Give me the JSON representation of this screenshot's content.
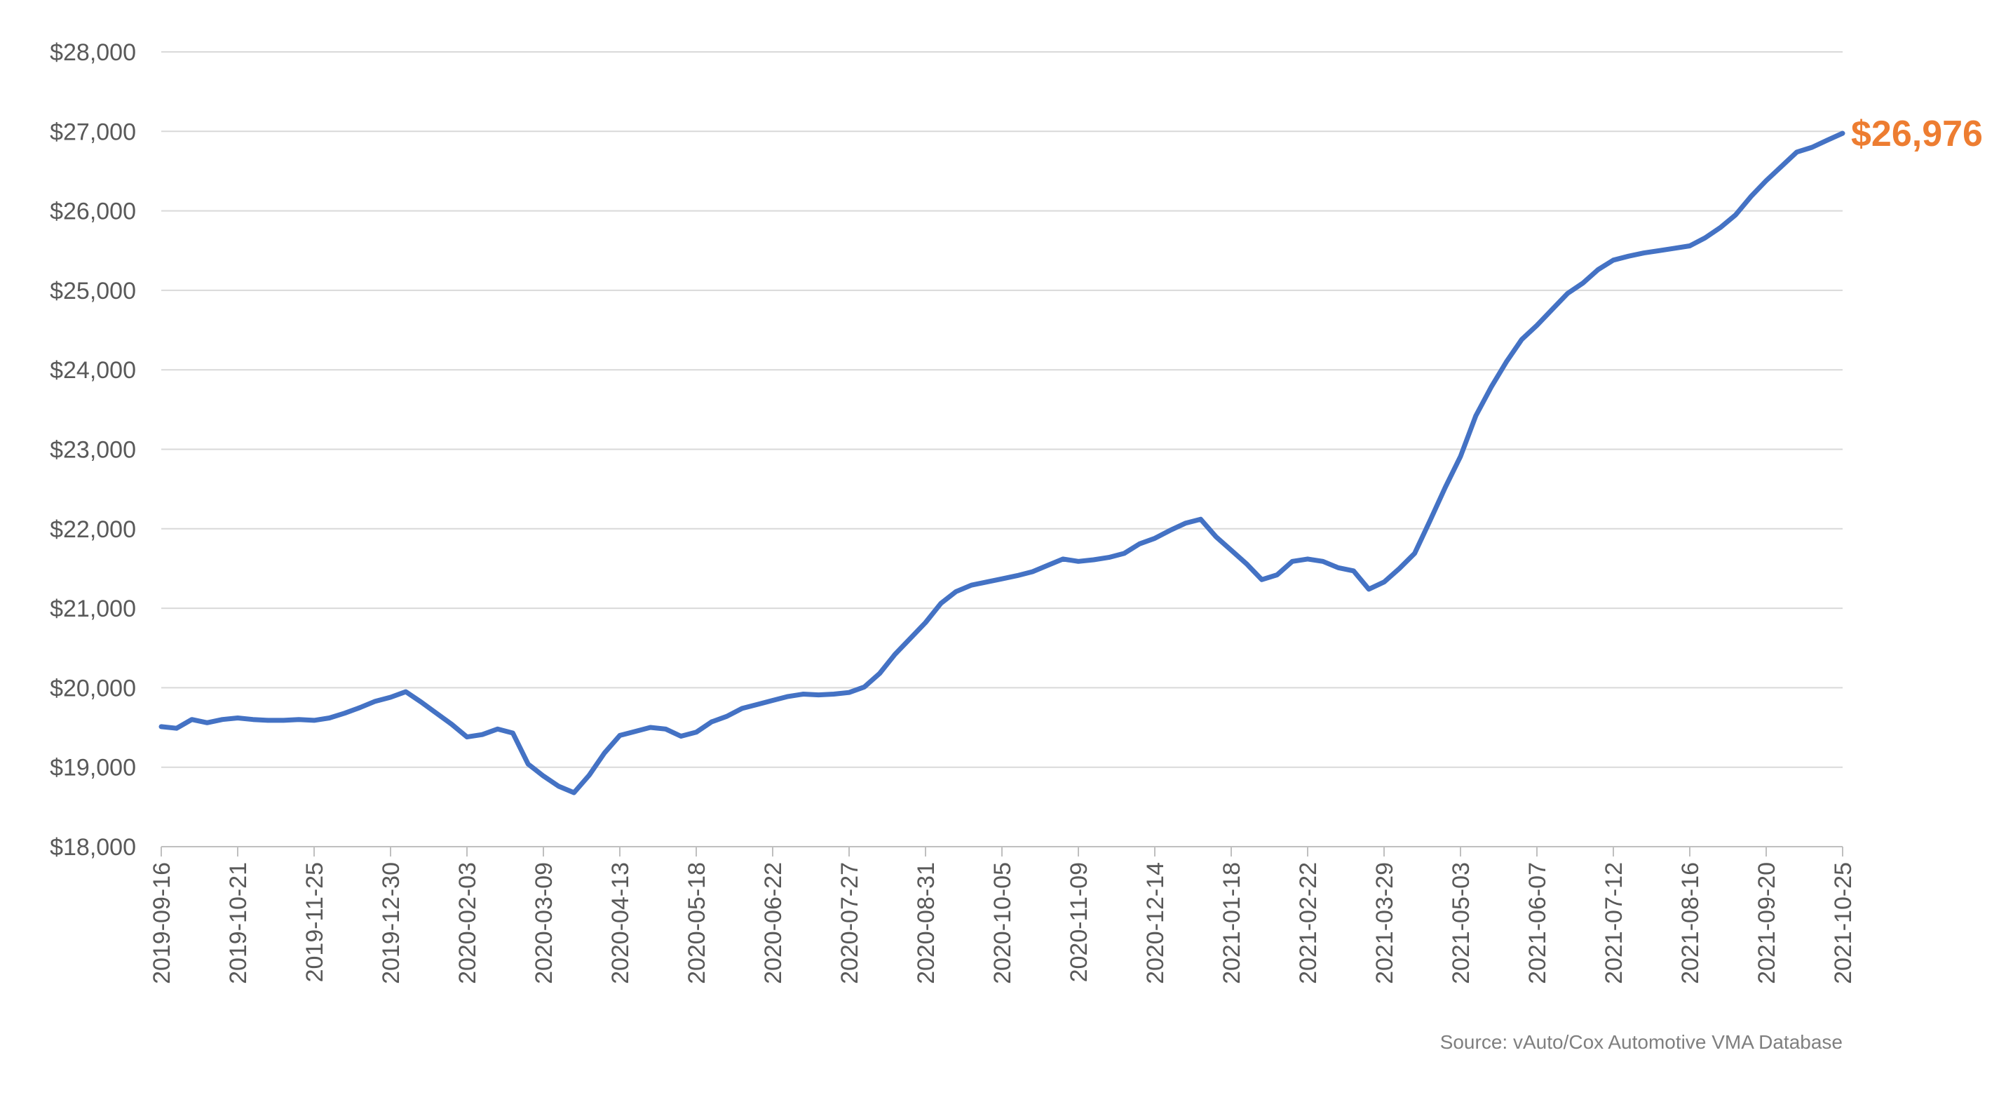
{
  "chart_data": {
    "type": "line",
    "title": "",
    "xlabel": "",
    "ylabel": "",
    "ylim": [
      18000,
      28000
    ],
    "y_ticks": [
      18000,
      19000,
      20000,
      21000,
      22000,
      23000,
      24000,
      25000,
      26000,
      27000,
      28000
    ],
    "y_tick_labels": [
      "$18,000",
      "$19,000",
      "$20,000",
      "$21,000",
      "$22,000",
      "$23,000",
      "$24,000",
      "$25,000",
      "$26,000",
      "$27,000",
      "$28,000"
    ],
    "x_tick_labels": [
      "2019-09-16",
      "2019-10-21",
      "2019-11-25",
      "2019-12-30",
      "2020-02-03",
      "2020-03-09",
      "2020-04-13",
      "2020-05-18",
      "2020-06-22",
      "2020-07-27",
      "2020-08-31",
      "2020-10-05",
      "2020-11-09",
      "2020-12-14",
      "2021-01-18",
      "2021-02-22",
      "2021-03-29",
      "2021-05-03",
      "2021-06-07",
      "2021-07-12",
      "2021-08-16",
      "2021-09-20",
      "2021-10-25"
    ],
    "grid": true,
    "legend": "none",
    "series_color": "#4472c4",
    "end_label_color": "#ed7d31",
    "end_value_label": "$26,976",
    "source": "Source: vAuto/Cox Automotive VMA Database",
    "x": [
      "2019-09-16",
      "2019-09-23",
      "2019-09-30",
      "2019-10-07",
      "2019-10-14",
      "2019-10-21",
      "2019-10-28",
      "2019-11-04",
      "2019-11-11",
      "2019-11-18",
      "2019-11-25",
      "2019-12-02",
      "2019-12-09",
      "2019-12-16",
      "2019-12-23",
      "2019-12-30",
      "2020-01-06",
      "2020-01-13",
      "2020-01-20",
      "2020-01-27",
      "2020-02-03",
      "2020-02-10",
      "2020-02-17",
      "2020-02-24",
      "2020-03-02",
      "2020-03-09",
      "2020-03-16",
      "2020-03-23",
      "2020-03-30",
      "2020-04-06",
      "2020-04-13",
      "2020-04-20",
      "2020-04-27",
      "2020-05-04",
      "2020-05-11",
      "2020-05-18",
      "2020-05-25",
      "2020-06-01",
      "2020-06-08",
      "2020-06-15",
      "2020-06-22",
      "2020-06-29",
      "2020-07-06",
      "2020-07-13",
      "2020-07-20",
      "2020-07-27",
      "2020-08-03",
      "2020-08-10",
      "2020-08-17",
      "2020-08-24",
      "2020-08-31",
      "2020-09-07",
      "2020-09-14",
      "2020-09-21",
      "2020-09-28",
      "2020-10-05",
      "2020-10-12",
      "2020-10-19",
      "2020-10-26",
      "2020-11-02",
      "2020-11-09",
      "2020-11-16",
      "2020-11-23",
      "2020-11-30",
      "2020-12-07",
      "2020-12-14",
      "2020-12-21",
      "2020-12-28",
      "2021-01-04",
      "2021-01-11",
      "2021-01-18",
      "2021-01-25",
      "2021-02-01",
      "2021-02-08",
      "2021-02-15",
      "2021-02-22",
      "2021-03-01",
      "2021-03-08",
      "2021-03-15",
      "2021-03-22",
      "2021-03-29",
      "2021-04-05",
      "2021-04-12",
      "2021-04-19",
      "2021-04-26",
      "2021-05-03",
      "2021-05-10",
      "2021-05-17",
      "2021-05-24",
      "2021-05-31",
      "2021-06-07",
      "2021-06-14",
      "2021-06-21",
      "2021-06-28",
      "2021-07-05",
      "2021-07-12",
      "2021-07-19",
      "2021-07-26",
      "2021-08-02",
      "2021-08-09",
      "2021-08-16",
      "2021-08-23",
      "2021-08-30",
      "2021-09-06",
      "2021-09-13",
      "2021-09-20",
      "2021-09-27",
      "2021-10-04",
      "2021-10-11",
      "2021-10-18",
      "2021-10-25"
    ],
    "series": [
      {
        "values": [
          19510,
          19490,
          19600,
          19560,
          19600,
          19620,
          19600,
          19590,
          19590,
          19600,
          19590,
          19620,
          19680,
          19750,
          19830,
          19880,
          19950,
          19820,
          19680,
          19540,
          19380,
          19410,
          19480,
          19430,
          19040,
          18890,
          18760,
          18680,
          18900,
          19180,
          19400,
          19450,
          19500,
          19480,
          19390,
          19440,
          19570,
          19640,
          19740,
          19790,
          19840,
          19890,
          19920,
          19910,
          19920,
          19940,
          20010,
          20180,
          20420,
          20620,
          20820,
          21060,
          21210,
          21290,
          21330,
          21370,
          21410,
          21460,
          21540,
          21620,
          21590,
          21610,
          21640,
          21690,
          21810,
          21880,
          21980,
          22070,
          22120,
          21900,
          21730,
          21560,
          21360,
          21420,
          21590,
          21620,
          21590,
          21510,
          21470,
          21240,
          21330,
          21500,
          21690,
          22100,
          22520,
          22910,
          23420,
          23780,
          24100,
          24380,
          24560,
          24760,
          24960,
          25090,
          25260,
          25380,
          25430,
          25470,
          25500,
          25530,
          25560,
          25660,
          25790,
          25950,
          26180,
          26380,
          26560,
          26740,
          26800,
          26890,
          26976
        ]
      }
    ]
  }
}
